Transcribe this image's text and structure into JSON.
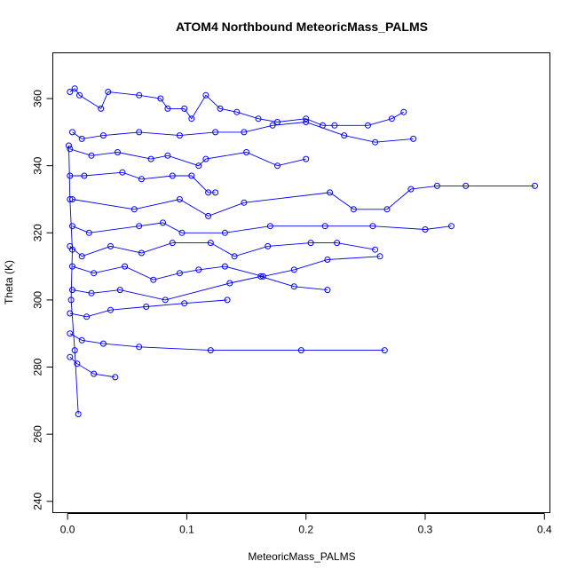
{
  "chart_data": {
    "type": "scatter",
    "title": "ATOM4 Northbound MeteoricMass_PALMS",
    "xlabel": "MeteoricMass_PALMS",
    "ylabel": "Theta (K)",
    "xlim": [
      -0.012,
      0.405
    ],
    "ylim": [
      236.5,
      373.5
    ],
    "x_ticks": [
      0.0,
      0.1,
      0.2,
      0.3,
      0.4
    ],
    "x_tick_labels": [
      "0.0",
      "0.1",
      "0.2",
      "0.3",
      "0.4"
    ],
    "y_ticks": [
      240,
      260,
      280,
      300,
      320,
      340,
      360
    ],
    "y_tick_labels": [
      "240",
      "260",
      "280",
      "300",
      "320",
      "340",
      "360"
    ],
    "grid": false,
    "legend": "none",
    "markers": "open circles connected by lines",
    "color": "#0000ff",
    "series": [
      {
        "x": [
          0.002,
          0.006,
          0.01,
          0.028,
          0.034,
          0.06,
          0.078,
          0.084,
          0.098,
          0.104,
          0.116,
          0.128,
          0.142,
          0.16,
          0.176,
          0.2,
          0.214,
          0.224,
          0.252,
          0.272,
          0.282
        ],
        "y": [
          362,
          363,
          361,
          357,
          362,
          361,
          360,
          357,
          357,
          354,
          361,
          357,
          356,
          354,
          353,
          354,
          352,
          352,
          352,
          354,
          356
        ]
      },
      {
        "x": [
          0.004,
          0.012,
          0.03,
          0.06,
          0.094,
          0.124,
          0.148,
          0.172,
          0.2,
          0.232,
          0.258,
          0.29
        ],
        "y": [
          350,
          348,
          349,
          350,
          349,
          350,
          350,
          352,
          353,
          349,
          347,
          348
        ]
      },
      {
        "x": [
          0.002,
          0.02,
          0.042,
          0.07,
          0.084,
          0.11,
          0.116,
          0.15,
          0.176,
          0.2
        ],
        "y": [
          345,
          343,
          344,
          342,
          343,
          340,
          342,
          344,
          340,
          342
        ]
      },
      {
        "x": [
          0.002,
          0.014,
          0.046,
          0.062,
          0.088,
          0.104,
          0.118,
          0.124
        ],
        "y": [
          337,
          337,
          338,
          336,
          337,
          337,
          332,
          332
        ]
      },
      {
        "x": [
          0.004,
          0.056,
          0.094,
          0.118,
          0.148,
          0.22,
          0.24,
          0.268,
          0.288,
          0.31,
          0.334,
          0.392
        ],
        "y": [
          330,
          327,
          330,
          325,
          329,
          332,
          327,
          327,
          333,
          334,
          334,
          334
        ]
      },
      {
        "x": [
          0.004,
          0.018,
          0.06,
          0.08,
          0.096,
          0.132,
          0.17,
          0.216,
          0.256,
          0.3,
          0.322
        ],
        "y": [
          322,
          320,
          322,
          323,
          320,
          320,
          322,
          322,
          322,
          321,
          322
        ]
      },
      {
        "x": [
          0.002,
          0.012,
          0.036,
          0.062,
          0.088,
          0.12,
          0.14,
          0.168,
          0.204,
          0.226,
          0.258
        ],
        "y": [
          316,
          313,
          316,
          314,
          317,
          317,
          313,
          316,
          317,
          317,
          315
        ]
      },
      {
        "x": [
          0.004,
          0.022,
          0.048,
          0.072,
          0.094,
          0.11,
          0.132,
          0.164,
          0.19,
          0.218,
          0.262
        ],
        "y": [
          310,
          308,
          310,
          306,
          308,
          309,
          310,
          307,
          309,
          312,
          313
        ]
      },
      {
        "x": [
          0.004,
          0.02,
          0.044,
          0.082,
          0.136,
          0.162,
          0.19,
          0.218
        ],
        "y": [
          303,
          302,
          303,
          300,
          305,
          307,
          304,
          303
        ]
      },
      {
        "x": [
          0.002,
          0.016,
          0.036,
          0.066,
          0.098,
          0.134
        ],
        "y": [
          296,
          295,
          297,
          298,
          299,
          300
        ]
      },
      {
        "x": [
          0.002,
          0.012,
          0.03,
          0.06,
          0.12,
          0.196,
          0.266
        ],
        "y": [
          290,
          288,
          287,
          286,
          285,
          285,
          285
        ]
      },
      {
        "x": [
          0.002,
          0.008,
          0.022,
          0.04
        ],
        "y": [
          283,
          281,
          278,
          277
        ]
      },
      {
        "x": [
          0.001,
          0.002,
          0.004,
          0.003,
          0.006,
          0.009
        ],
        "y": [
          346,
          330,
          315,
          300,
          285,
          266
        ]
      }
    ]
  }
}
